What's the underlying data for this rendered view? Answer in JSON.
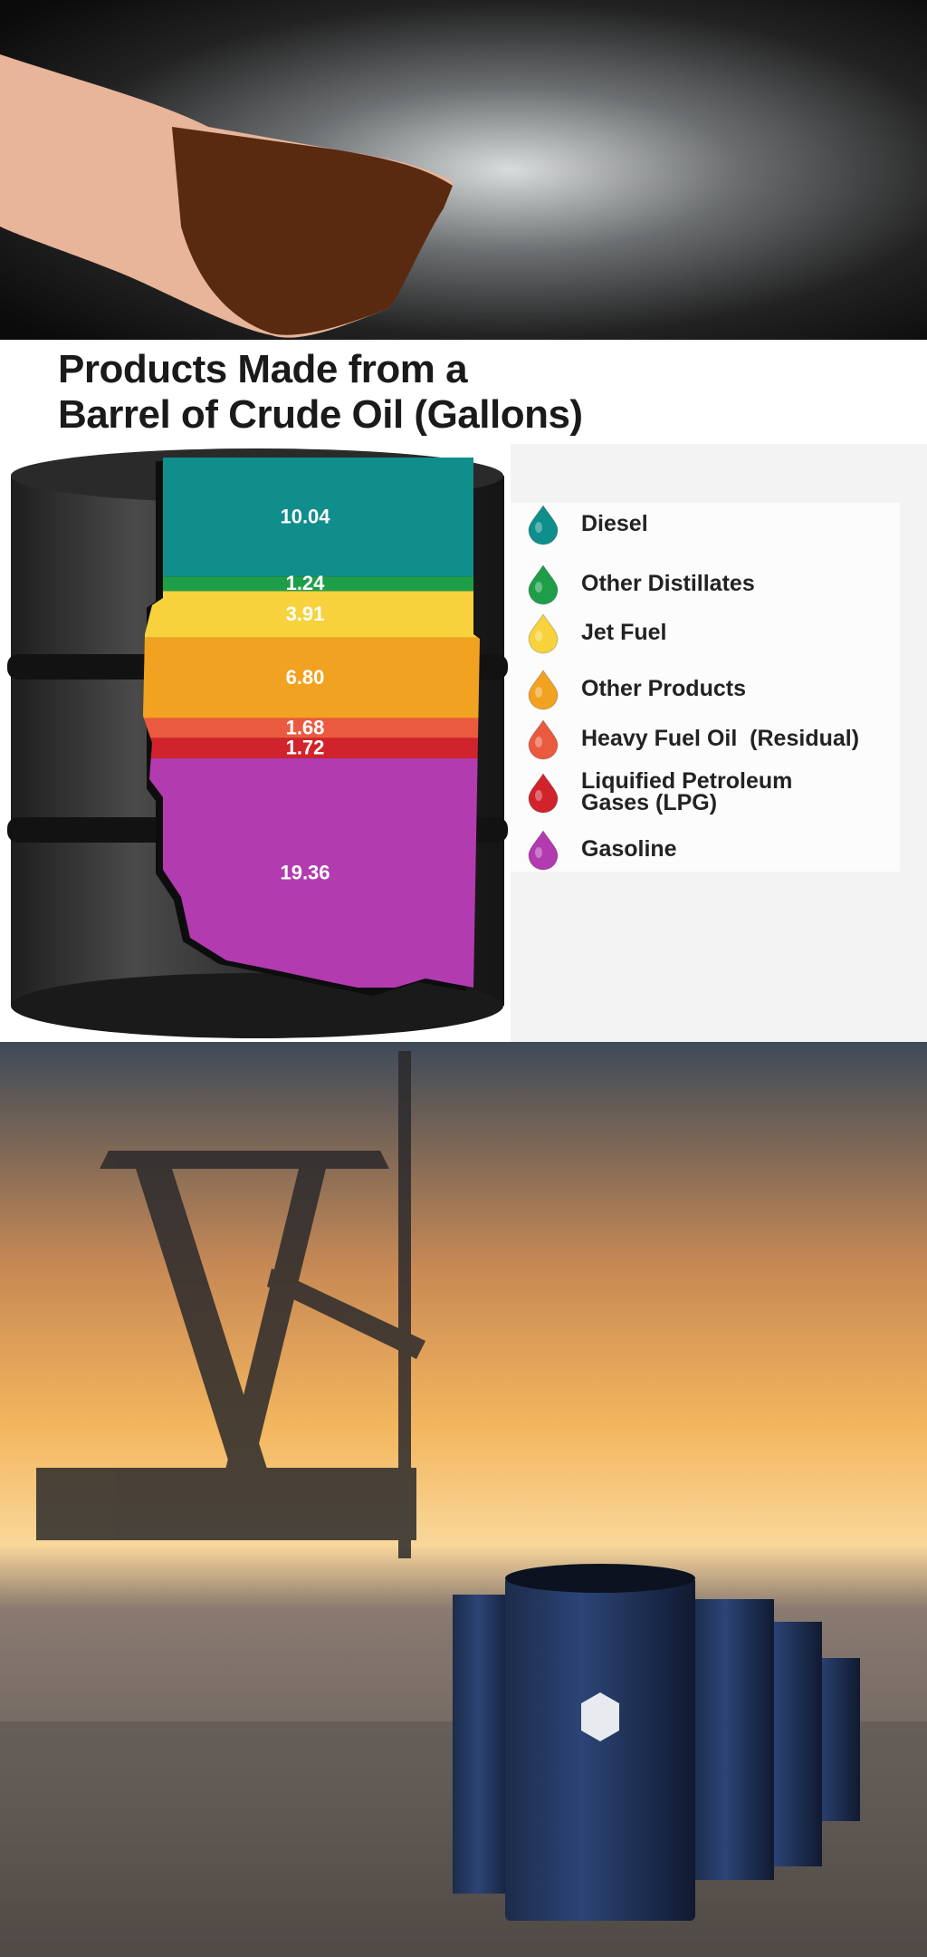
{
  "chart_data": {
    "type": "stacked-barrel",
    "title": [
      "Products Made from a",
      "Barrel of Crude Oil (Gallons)"
    ],
    "categories": [
      "Diesel",
      "Other Distillates",
      "Jet Fuel",
      "Other Products",
      "Heavy Fuel Oil  (Residual)",
      "Liquified Petroleum Gases (LPG)",
      "Gasoline"
    ],
    "values": [
      10.04,
      1.24,
      3.91,
      6.8,
      1.68,
      1.72,
      19.36
    ],
    "value_labels": [
      "10.04",
      "1.24",
      "3.91",
      "6.80",
      "1.68",
      "1.72",
      "19.36"
    ],
    "colors": [
      "#0f8e8b",
      "#1f9e4a",
      "#f7d23c",
      "#f2a221",
      "#ea5a3f",
      "#d1232b",
      "#b33bb0"
    ]
  }
}
